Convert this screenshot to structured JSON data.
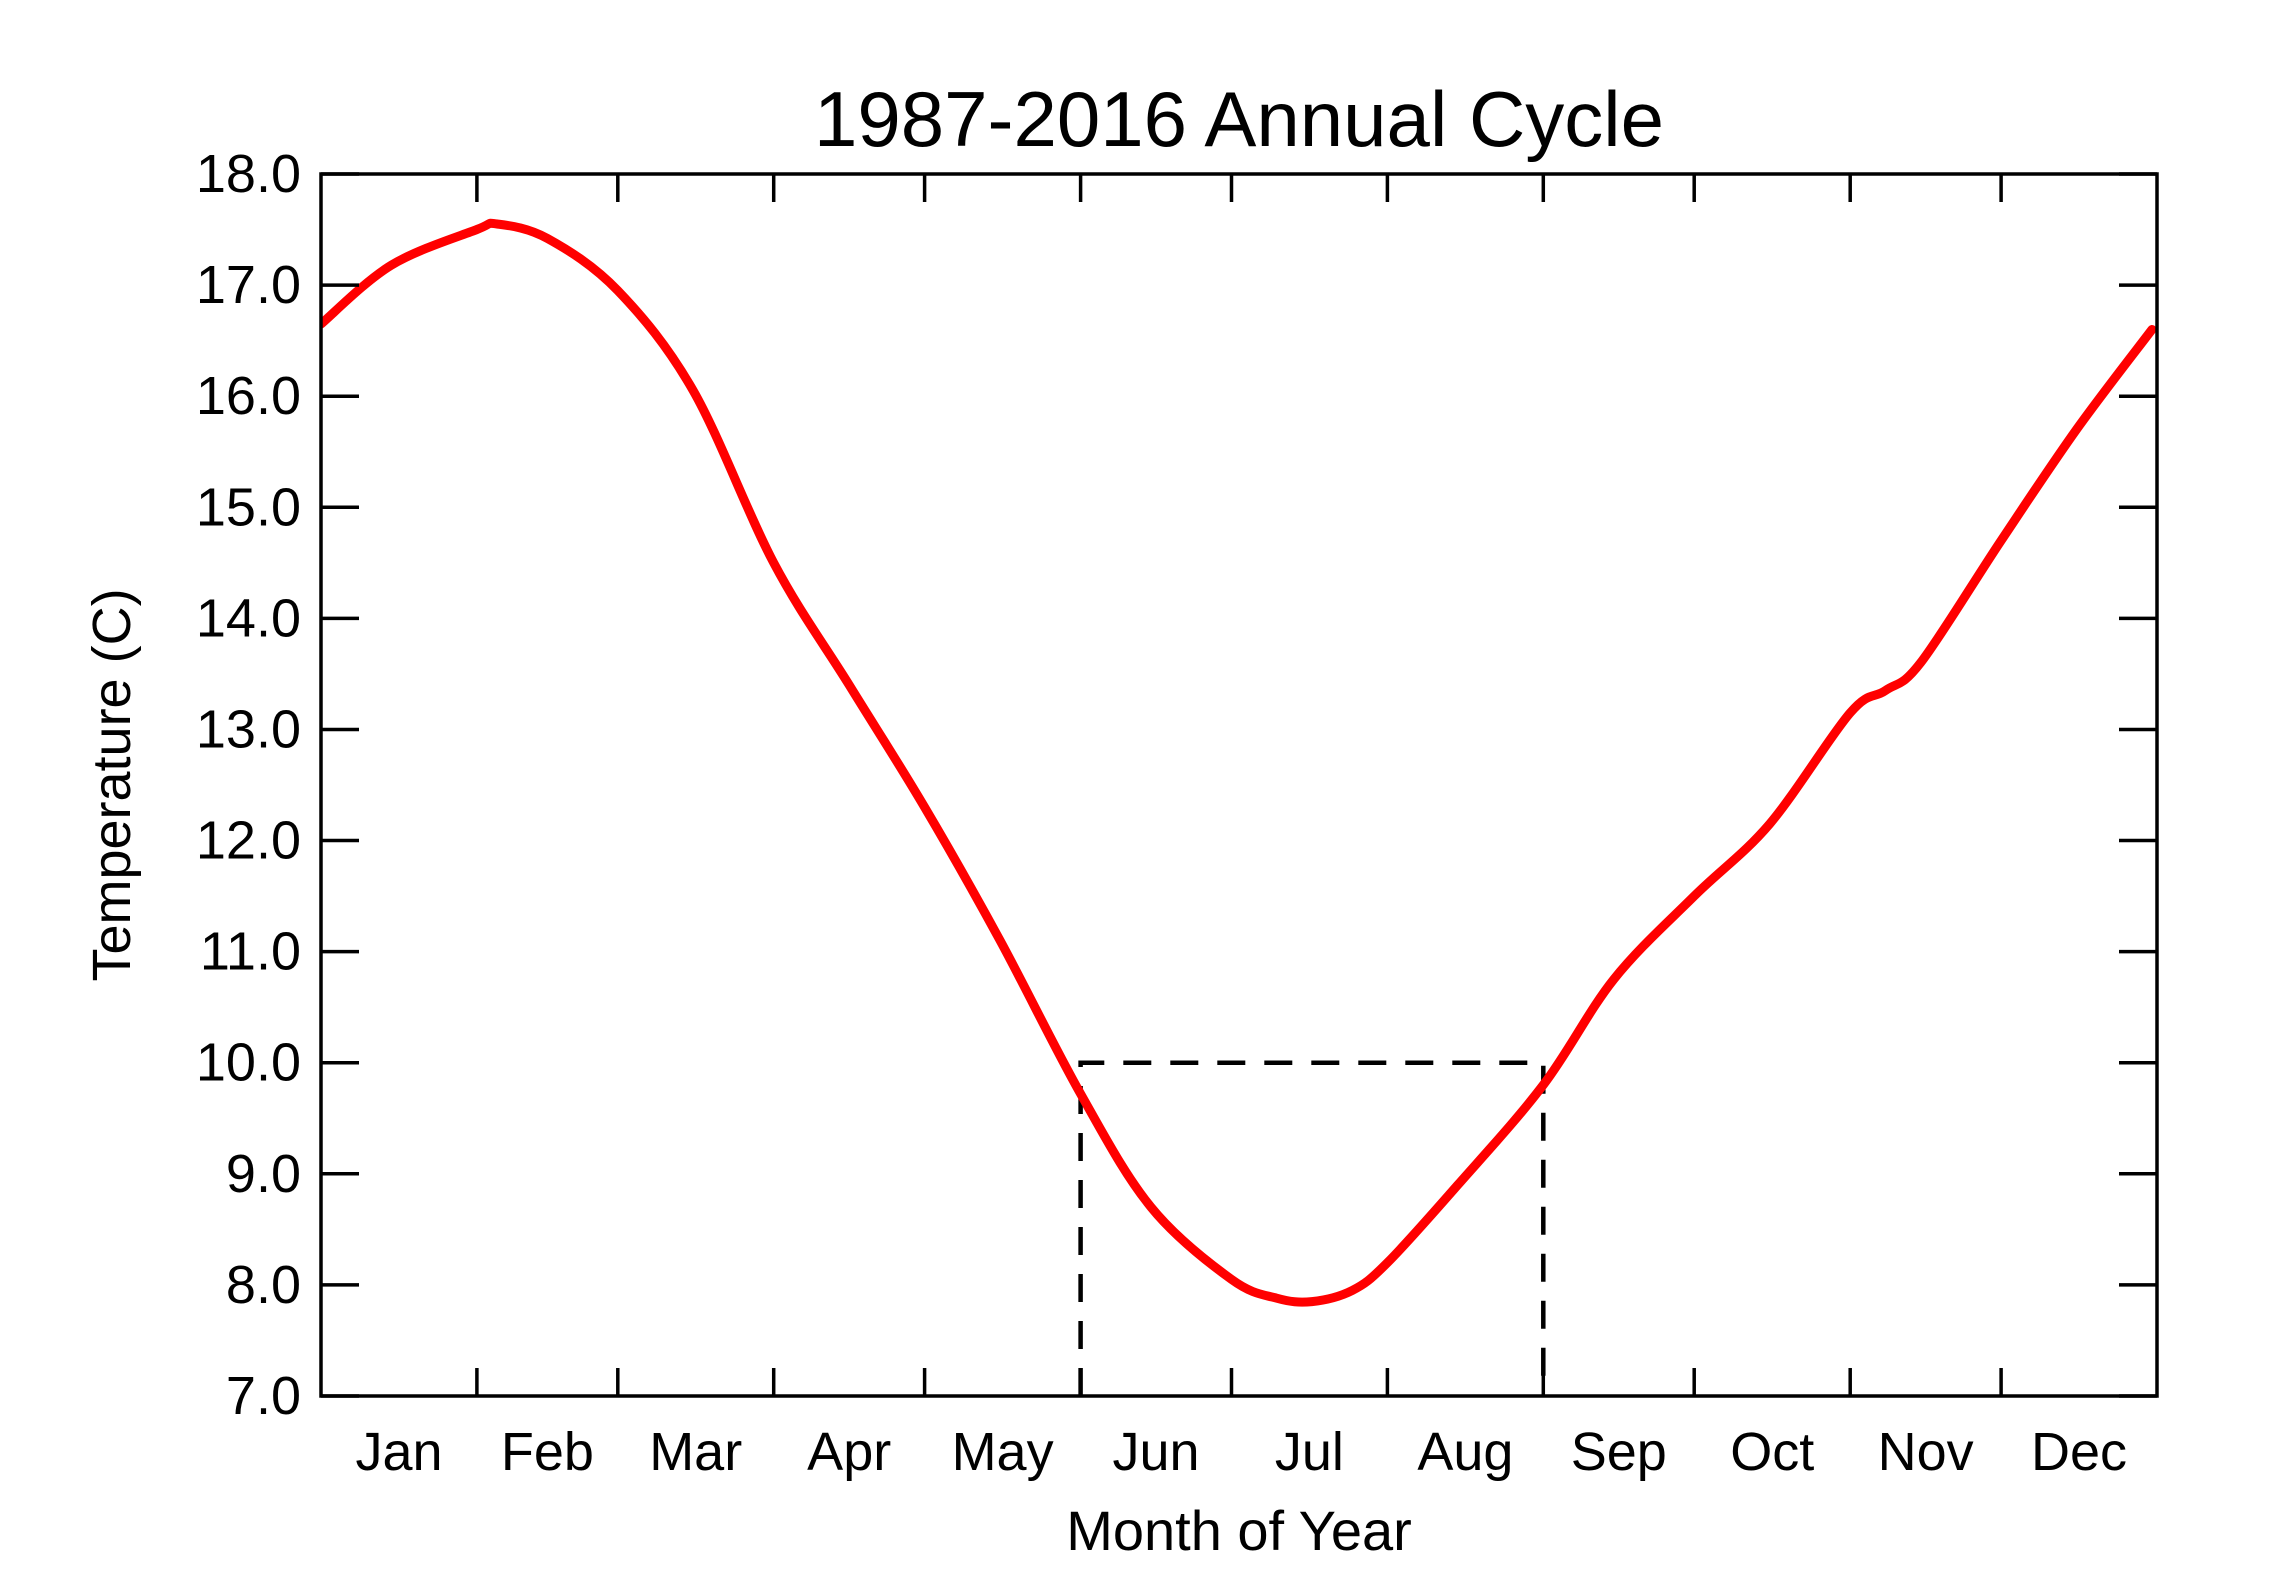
{
  "page": {
    "background": "#ffffff"
  },
  "chart_data": {
    "type": "line",
    "title": "1987-2016 Annual Cycle",
    "xlabel": "Month of Year",
    "ylabel": "Temperature (C)",
    "x_tick_labels": [
      "Jan",
      "Feb",
      "Mar",
      "Apr",
      "May",
      "Jun",
      "Jul",
      "Aug",
      "Sep",
      "Oct",
      "Nov",
      "Dec"
    ],
    "month_boundary_days": [
      0,
      31,
      59,
      90,
      120,
      151,
      181,
      212,
      243,
      273,
      304,
      334,
      365
    ],
    "xlim_days": [
      0,
      365
    ],
    "ylim": [
      7.0,
      18.0
    ],
    "y_ticks": [
      {
        "value": 7,
        "label": "7.0"
      },
      {
        "value": 8,
        "label": "8.0"
      },
      {
        "value": 9,
        "label": "9.0"
      },
      {
        "value": 10,
        "label": "10.0"
      },
      {
        "value": 11,
        "label": "11.0"
      },
      {
        "value": 12,
        "label": "12.0"
      },
      {
        "value": 13,
        "label": "13.0"
      },
      {
        "value": 14,
        "label": "14.0"
      },
      {
        "value": 15,
        "label": "15.0"
      },
      {
        "value": 16,
        "label": "16.0"
      },
      {
        "value": 17,
        "label": "17.0"
      },
      {
        "value": 18,
        "label": "18.0"
      }
    ],
    "grid": false,
    "legend": null,
    "axis_color": "#000000",
    "text_color": "#000000",
    "series": [
      {
        "name": "annual-cycle-mean-temperature",
        "color": "#ff0000",
        "style": "solid",
        "points_day_temp": [
          [
            0,
            16.65
          ],
          [
            14,
            17.18
          ],
          [
            31,
            17.5
          ],
          [
            35,
            17.55
          ],
          [
            45,
            17.42
          ],
          [
            59,
            16.95
          ],
          [
            74,
            16.05
          ],
          [
            90,
            14.5
          ],
          [
            105,
            13.4
          ],
          [
            120,
            12.3
          ],
          [
            135,
            11.1
          ],
          [
            151,
            9.72
          ],
          [
            165,
            8.7
          ],
          [
            181,
            8.05
          ],
          [
            190,
            7.88
          ],
          [
            197,
            7.85
          ],
          [
            205,
            7.95
          ],
          [
            212,
            8.2
          ],
          [
            226,
            8.9
          ],
          [
            243,
            9.8
          ],
          [
            257,
            10.75
          ],
          [
            273,
            11.5
          ],
          [
            288,
            12.15
          ],
          [
            304,
            13.15
          ],
          [
            311,
            13.35
          ],
          [
            318,
            13.6
          ],
          [
            334,
            14.7
          ],
          [
            349,
            15.7
          ],
          [
            364,
            16.6
          ]
        ],
        "peak": {
          "approx_day": 35,
          "temp": 17.55
        },
        "minimum": {
          "approx_day": 192,
          "temp": 7.85
        }
      }
    ],
    "annotations": [
      {
        "name": "summer-season-box",
        "style": "dashed",
        "color": "#000000",
        "from_day": 151,
        "to_day": 243,
        "top_temp": 10.0,
        "bottom_temp": 7.0
      }
    ]
  }
}
